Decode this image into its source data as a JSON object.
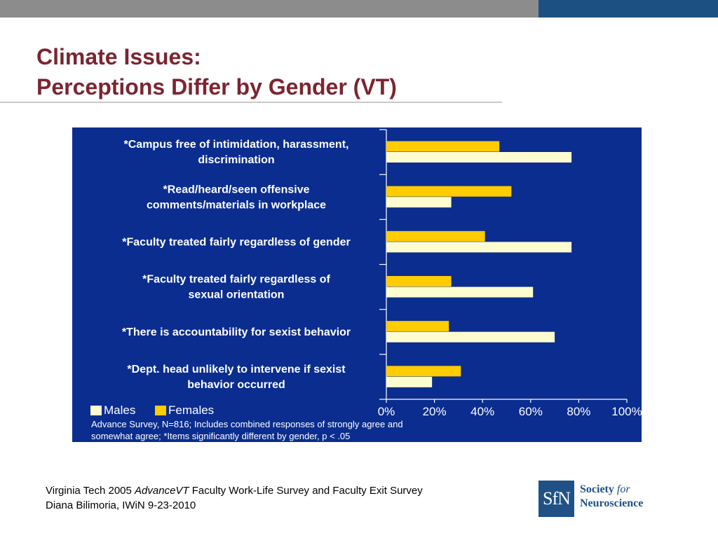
{
  "header": {
    "title_line1": "Climate Issues:",
    "title_line2": "Perceptions Differ by Gender (VT)"
  },
  "colors": {
    "panel_bg": "#0a2d8f",
    "males": "#fffdd0",
    "females": "#ffcc00",
    "title": "#7b2531",
    "topbar_gray": "#8c8c8c",
    "topbar_blue": "#1c4f82"
  },
  "chart_data": {
    "type": "bar",
    "orientation": "horizontal",
    "categories": [
      [
        "*Campus free of intimidation, harassment,",
        "discrimination"
      ],
      [
        "*Read/heard/seen offensive",
        "comments/materials in workplace"
      ],
      [
        "*Faculty treated fairly regardless of gender"
      ],
      [
        "*Faculty treated fairly regardless of",
        "sexual orientation"
      ],
      [
        "*There is accountability for sexist behavior"
      ],
      [
        "*Dept. head unlikely to intervene if sexist",
        "behavior occurred"
      ]
    ],
    "series": [
      {
        "name": "Females",
        "values": [
          47,
          52,
          41,
          27,
          26,
          31
        ]
      },
      {
        "name": "Males",
        "values": [
          77,
          27,
          77,
          61,
          70,
          19
        ]
      }
    ],
    "xlim": [
      0,
      100
    ],
    "x_ticks": [
      "0%",
      "20%",
      "40%",
      "60%",
      "80%",
      "100%"
    ],
    "legend": [
      "Males",
      "Females"
    ],
    "legend_position": "bottom-left",
    "note_line1": "Advance Survey, N=816;  Includes combined responses of strongly agree and",
    "note_line2": "somewhat agree; *Items significantly different by gender, p < .05"
  },
  "footer": {
    "line1_prefix": "Virginia Tech 2005 ",
    "line1_italic": "AdvanceVT",
    "line1_suffix": " Faculty Work-Life Survey and Faculty Exit Survey",
    "line2": "Diana Bilimoria, IWiN 9-23-2010"
  },
  "logo": {
    "mark": "SfN",
    "line1_a": "Society ",
    "line1_b": "for",
    "line2": "Neuroscience"
  }
}
